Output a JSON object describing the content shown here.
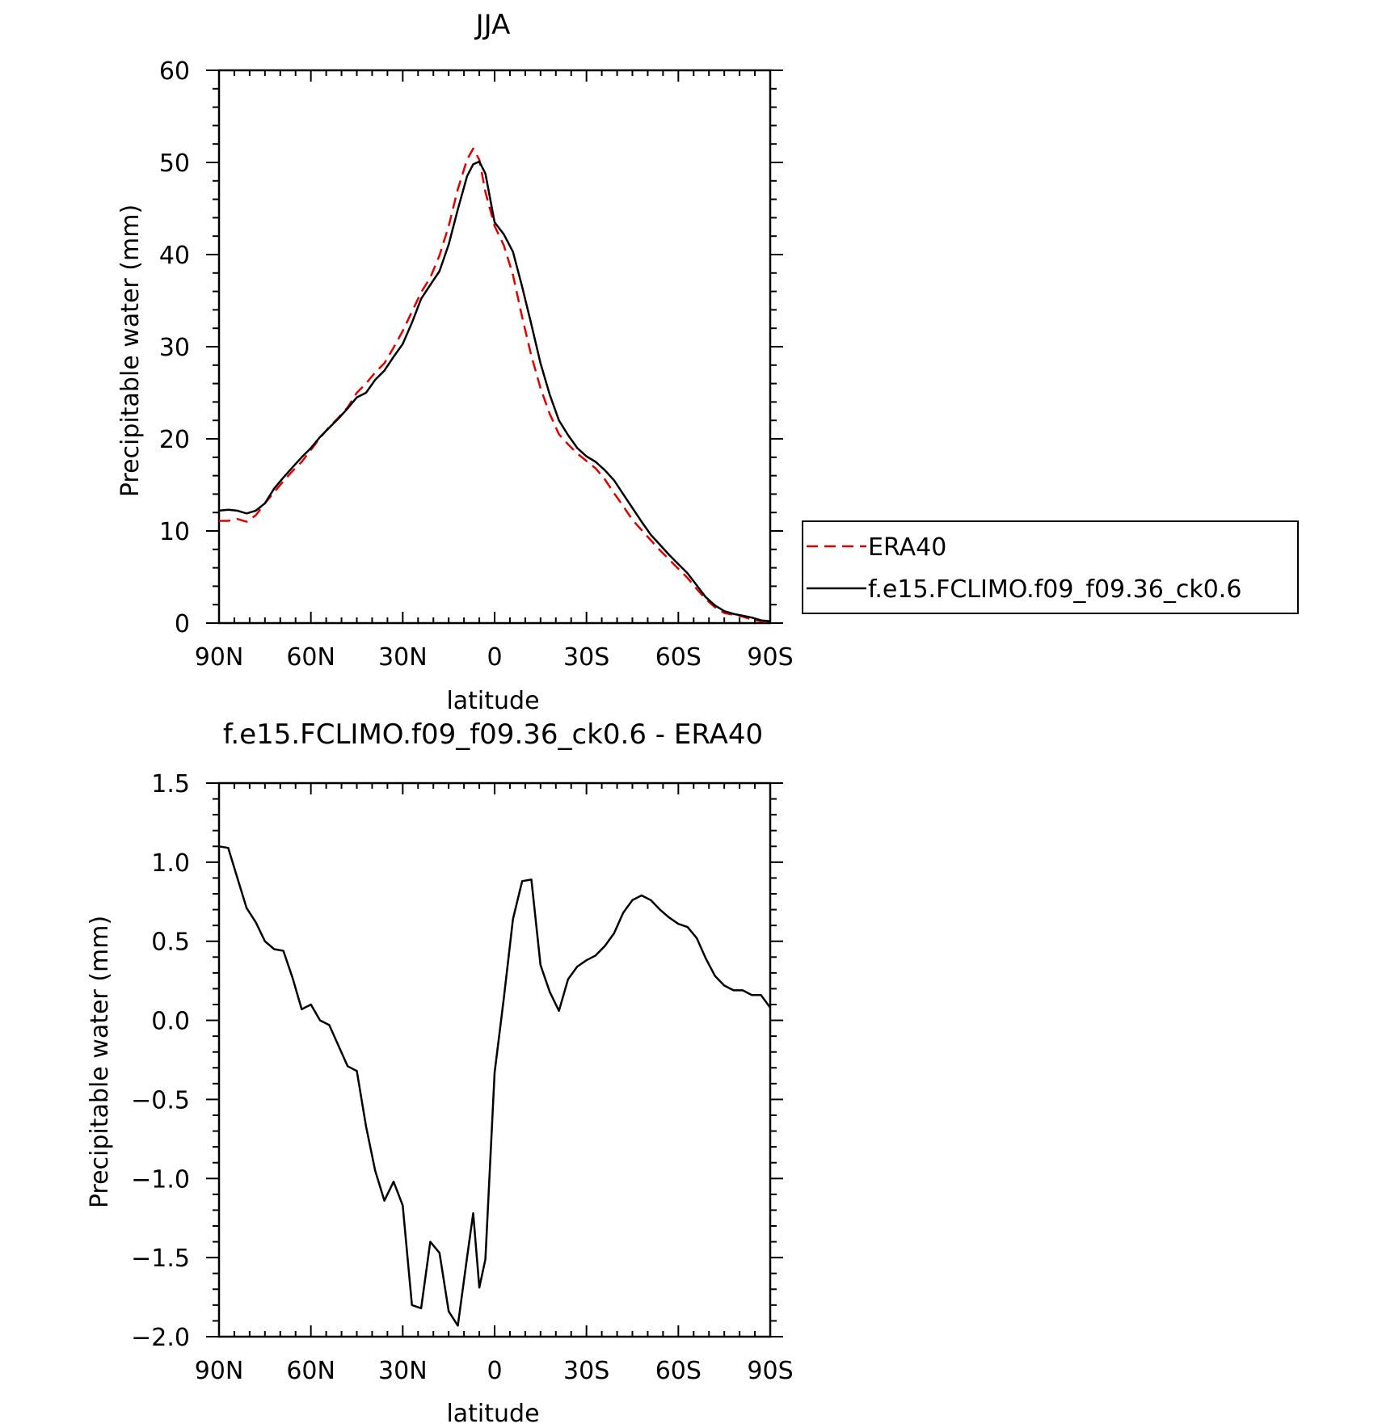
{
  "colors": {
    "era40": "#dd0000",
    "model": "#000000",
    "axes": "#000000"
  },
  "legend": {
    "entries": [
      {
        "label": "ERA40",
        "style": "dashed",
        "color": "#dd0000"
      },
      {
        "label": "f.e15.FCLIMO.f09_f09.36_ck0.6",
        "style": "solid",
        "color": "#000000"
      }
    ]
  },
  "chart_data": [
    {
      "type": "line",
      "title": "JJA",
      "xlabel": "latitude",
      "ylabel": "Precipitable water (mm)",
      "xlim": [
        90,
        -90
      ],
      "ylim": [
        0,
        60
      ],
      "xticks": [
        90,
        60,
        30,
        0,
        -30,
        -60,
        -90
      ],
      "xticklabels": [
        "90N",
        "60N",
        "30N",
        "0",
        "30S",
        "60S",
        "90S"
      ],
      "yticks": [
        0,
        10,
        20,
        30,
        40,
        50,
        60
      ],
      "yticklabels": [
        "0",
        "10",
        "20",
        "30",
        "40",
        "50",
        "60"
      ],
      "legend_position": "right",
      "series": [
        {
          "name": "ERA40",
          "style": "dashed",
          "color": "#dd0000",
          "x": [
            90,
            87,
            84,
            81,
            78,
            75,
            72,
            69,
            66,
            63,
            60,
            57,
            54,
            51,
            48,
            45,
            42,
            39,
            36,
            33,
            30,
            27,
            24,
            21,
            18,
            15,
            12,
            9,
            7,
            5,
            3,
            0,
            -3,
            -6,
            -9,
            -12,
            -15,
            -18,
            -21,
            -24,
            -27,
            -30,
            -33,
            -36,
            -39,
            -42,
            -45,
            -48,
            -51,
            -54,
            -57,
            -60,
            -63,
            -66,
            -69,
            -72,
            -75,
            -78,
            -81,
            -84,
            -87,
            -90
          ],
          "y": [
            11.1,
            11.1,
            11.3,
            11.0,
            11.7,
            13.0,
            14.2,
            15.4,
            16.5,
            17.5,
            18.8,
            20.1,
            21.3,
            22.3,
            23.4,
            25.0,
            26.0,
            27.2,
            28.2,
            29.9,
            31.7,
            33.8,
            35.9,
            37.5,
            39.9,
            43.1,
            47.1,
            50.3,
            51.5,
            50.3,
            46.8,
            43.1,
            41.0,
            37.8,
            33.2,
            29.0,
            25.5,
            22.7,
            20.5,
            19.4,
            18.4,
            17.6,
            16.8,
            15.6,
            14.1,
            12.7,
            11.2,
            10.1,
            9.0,
            7.9,
            6.9,
            5.9,
            4.9,
            3.7,
            2.6,
            1.7,
            1.1,
            0.9,
            0.7,
            0.4,
            0.2,
            0.1
          ]
        },
        {
          "name": "f.e15.FCLIMO.f09_f09.36_ck0.6",
          "style": "solid",
          "color": "#000000",
          "x": [
            90,
            87,
            84,
            81,
            78,
            75,
            72,
            69,
            66,
            63,
            60,
            57,
            54,
            51,
            48,
            45,
            42,
            39,
            36,
            33,
            30,
            27,
            24,
            21,
            18,
            15,
            12,
            9,
            7,
            5,
            3,
            0,
            -3,
            -6,
            -9,
            -12,
            -15,
            -18,
            -21,
            -24,
            -27,
            -30,
            -33,
            -36,
            -39,
            -42,
            -45,
            -48,
            -51,
            -54,
            -57,
            -60,
            -63,
            -66,
            -69,
            -72,
            -75,
            -78,
            -81,
            -84,
            -87,
            -90
          ],
          "y": [
            12.2,
            12.3,
            12.2,
            11.9,
            12.2,
            13.0,
            14.6,
            15.8,
            16.9,
            18.0,
            19.0,
            20.2,
            21.2,
            22.2,
            23.3,
            24.5,
            25.0,
            26.4,
            27.4,
            28.9,
            30.3,
            32.6,
            35.2,
            36.7,
            38.2,
            41.1,
            44.9,
            48.5,
            49.8,
            50.1,
            48.8,
            43.5,
            42.2,
            40.3,
            36.5,
            32.4,
            28.2,
            24.8,
            22.0,
            20.4,
            19.0,
            18.1,
            17.5,
            16.6,
            15.5,
            14.0,
            12.5,
            11.0,
            9.6,
            8.5,
            7.4,
            6.4,
            5.4,
            4.1,
            2.8,
            1.9,
            1.3,
            1.0,
            0.8,
            0.6,
            0.3,
            0.2
          ]
        }
      ]
    },
    {
      "type": "line",
      "title": "f.e15.FCLIMO.f09_f09.36_ck0.6 - ERA40",
      "xlabel": "latitude",
      "ylabel": "Precipitable water (mm)",
      "xlim": [
        90,
        -90
      ],
      "ylim": [
        -2.0,
        1.5
      ],
      "xticks": [
        90,
        60,
        30,
        0,
        -30,
        -60,
        -90
      ],
      "xticklabels": [
        "90N",
        "60N",
        "30N",
        "0",
        "30S",
        "60S",
        "90S"
      ],
      "yticks": [
        -2.0,
        -1.5,
        -1.0,
        -0.5,
        0.0,
        0.5,
        1.0,
        1.5
      ],
      "yticklabels": [
        "−2.0",
        "−1.5",
        "−1.0",
        "−0.5",
        "0.0",
        "0.5",
        "1.0",
        "1.5"
      ],
      "series": [
        {
          "style": "solid",
          "color": "#000000",
          "x": [
            90,
            87,
            84,
            81,
            78,
            75,
            72,
            69,
            66,
            63,
            60,
            57,
            54,
            51,
            48,
            45,
            42,
            39,
            36,
            33,
            30,
            27,
            24,
            21,
            18,
            15,
            12,
            9,
            7,
            5,
            3,
            0,
            -3,
            -6,
            -9,
            -12,
            -15,
            -18,
            -21,
            -24,
            -27,
            -30,
            -33,
            -36,
            -39,
            -42,
            -45,
            -48,
            -51,
            -54,
            -57,
            -60,
            -63,
            -66,
            -69,
            -72,
            -75,
            -78,
            -81,
            -84,
            -87,
            -90
          ],
          "y": [
            1.1,
            1.09,
            0.9,
            0.71,
            0.62,
            0.5,
            0.45,
            0.44,
            0.27,
            0.07,
            0.1,
            0.0,
            -0.03,
            -0.16,
            -0.29,
            -0.32,
            -0.67,
            -0.95,
            -1.14,
            -1.02,
            -1.17,
            -1.8,
            -1.82,
            -1.4,
            -1.47,
            -1.84,
            -1.93,
            -1.5,
            -1.22,
            -1.69,
            -1.51,
            -0.33,
            0.14,
            0.64,
            0.88,
            0.89,
            0.35,
            0.18,
            0.06,
            0.26,
            0.34,
            0.38,
            0.41,
            0.47,
            0.55,
            0.68,
            0.76,
            0.79,
            0.76,
            0.7,
            0.65,
            0.61,
            0.59,
            0.52,
            0.39,
            0.28,
            0.22,
            0.19,
            0.19,
            0.16,
            0.16,
            0.08
          ]
        }
      ]
    }
  ]
}
